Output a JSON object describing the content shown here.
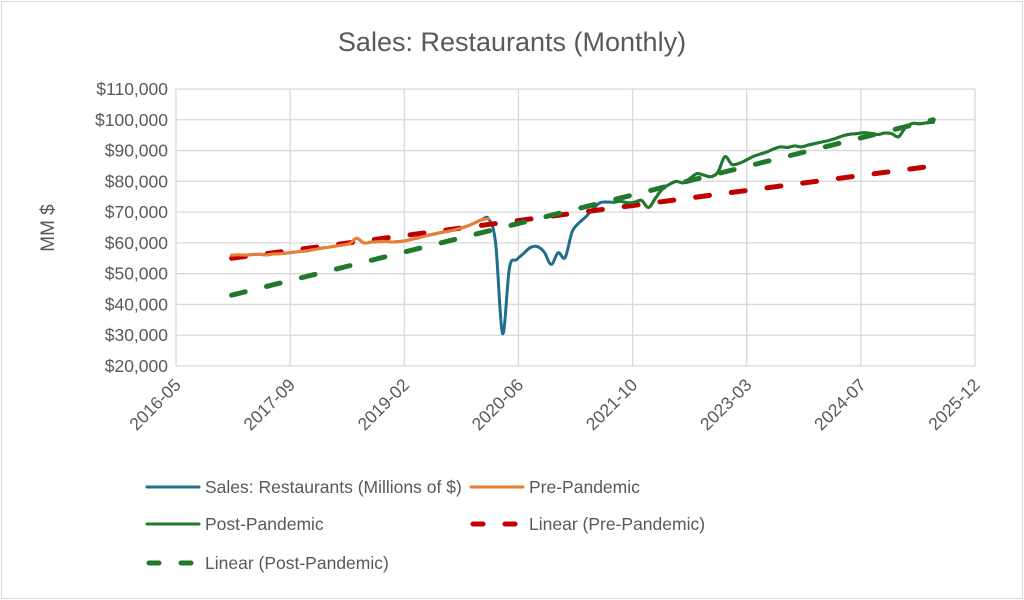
{
  "chart_data": {
    "type": "line",
    "title": "Sales: Restaurants (Monthly)",
    "xlabel": "",
    "ylabel": "MM $",
    "ylim": [
      20000,
      110000
    ],
    "ytick_step": 10000,
    "ytick_labels": [
      "$20,000",
      "$30,000",
      "$40,000",
      "$50,000",
      "$60,000",
      "$70,000",
      "$80,000",
      "$90,000",
      "$100,000",
      "$110,000"
    ],
    "xlim": [
      "2016-05",
      "2025-12"
    ],
    "xtick_labels": [
      "2016-05",
      "2017-09",
      "2019-02",
      "2020-06",
      "2021-10",
      "2023-03",
      "2024-07",
      "2025-12"
    ],
    "grid": true,
    "legend_position": "bottom",
    "series": [
      {
        "name": "Sales: Restaurants (Millions of $)",
        "color": "#1f6f8b",
        "style": "solid",
        "start": "2017-01",
        "values": [
          56000,
          56100,
          56000,
          56200,
          56300,
          56100,
          56400,
          56500,
          56700,
          57000,
          57200,
          57500,
          57900,
          58300,
          58600,
          59000,
          59300,
          59800,
          61500,
          60000,
          60200,
          60400,
          60500,
          60300,
          60400,
          60700,
          61200,
          61700,
          62300,
          62800,
          63300,
          63700,
          64200,
          64800,
          65500,
          66500,
          67500,
          67800,
          60000,
          30500,
          52000,
          54500,
          56500,
          58500,
          58800,
          57000,
          53000,
          56800,
          55200,
          63500,
          66500,
          68500,
          71000,
          73000,
          73300,
          73200,
          73500,
          73000,
          73200,
          73800,
          71500,
          74500,
          77500,
          79000,
          80000,
          79500,
          81000,
          82500,
          82000,
          81500,
          83000,
          88000,
          85500,
          85800,
          86800,
          88000,
          88800,
          89500,
          90500,
          91200,
          91000,
          91500,
          91200,
          91800,
          92300,
          92800,
          93300,
          94000,
          94800,
          95300,
          95500,
          95800,
          95600,
          95200,
          95700,
          95500,
          94500,
          97500,
          98800,
          98700,
          99000,
          99200
        ]
      },
      {
        "name": "Pre-Pandemic",
        "color": "#ed7d31",
        "style": "solid",
        "start": "2017-01",
        "values": [
          56000,
          56100,
          56000,
          56200,
          56300,
          56100,
          56400,
          56500,
          56700,
          57000,
          57200,
          57500,
          57900,
          58300,
          58600,
          59000,
          59300,
          59800,
          61500,
          60000,
          60200,
          60400,
          60500,
          60300,
          60400,
          60700,
          61200,
          61700,
          62300,
          62800,
          63300,
          63700,
          64200,
          64800,
          65500,
          66500,
          67500,
          67800
        ]
      },
      {
        "name": "Post-Pandemic",
        "color": "#217a2b",
        "style": "solid",
        "start": "2021-08",
        "values": [
          73200,
          73500,
          73000,
          73200,
          73800,
          71500,
          74500,
          77500,
          79000,
          80000,
          79500,
          81000,
          82500,
          82000,
          81500,
          83000,
          88000,
          85500,
          85800,
          86800,
          88000,
          88800,
          89500,
          90500,
          91200,
          91000,
          91500,
          91200,
          91800,
          92300,
          92800,
          93300,
          94000,
          94800,
          95300,
          95500,
          95800,
          95600,
          95200,
          95700,
          95500,
          94500,
          97500,
          98800,
          98700,
          99000,
          99200
        ]
      },
      {
        "name": "Linear (Pre-Pandemic)",
        "color": "#c00000",
        "style": "dashed",
        "trendline": true,
        "x": [
          "2017-01",
          "2025-06"
        ],
        "values": [
          55000,
          85000
        ]
      },
      {
        "name": "Linear (Post-Pandemic)",
        "color": "#217a2b",
        "style": "dashed",
        "trendline": true,
        "x": [
          "2017-01",
          "2025-06"
        ],
        "values": [
          43000,
          100000
        ]
      }
    ]
  }
}
